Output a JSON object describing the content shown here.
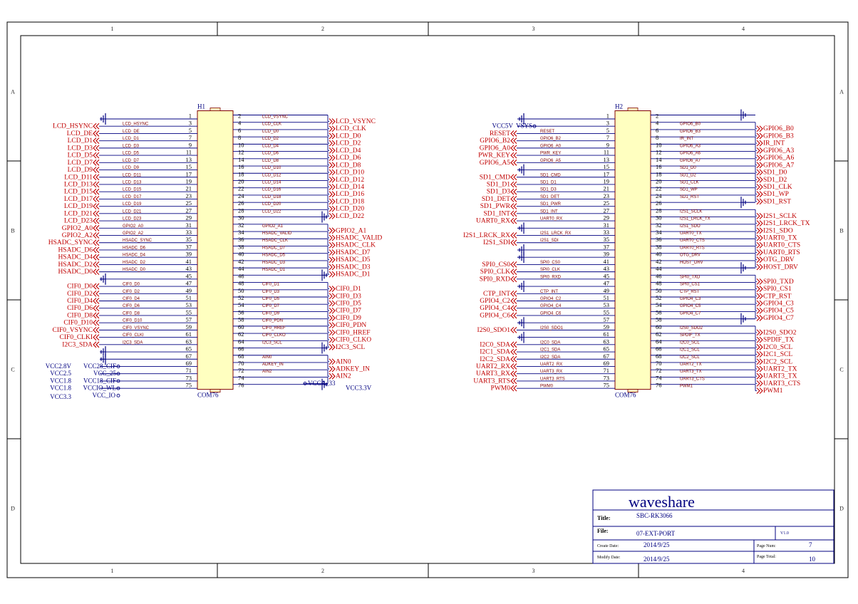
{
  "title_block": {
    "company": "waveshare",
    "title_label": "Title:",
    "title": "SBC-RK3066",
    "file_label": "File:",
    "file": "07-EXT-PORT",
    "version": "V1.0",
    "create_label": "Create Date:",
    "create_date": "2014/9/25",
    "modify_label": "Modify Date:",
    "modify_date": "2014/9/25",
    "page_num_label": "Page Num:",
    "page_num": "7",
    "page_total_label": "Page Total:",
    "page_total": "10"
  },
  "zones": {
    "cols": [
      "1",
      "2",
      "3",
      "4"
    ],
    "rows": [
      "A",
      "B",
      "C",
      "D"
    ]
  },
  "colors": {
    "frame": "#000000",
    "wire": "#000080",
    "net": "#c00000",
    "header_body": "#ffffc0",
    "sig": "#800000"
  },
  "h1": {
    "ref": "H1",
    "part": "COM76",
    "rows": [
      {
        "ln": "1",
        "lsig": "",
        "lnet": "",
        "lt": "gnd",
        "rn": "2",
        "rsig": "LCD_VSYNC",
        "rnet": "LCD_VSYNC",
        "rt": "out"
      },
      {
        "ln": "3",
        "lsig": "LCD_HSYNC",
        "lnet": "LCD_HSYNC",
        "lt": "out",
        "rn": "4",
        "rsig": "LCD_CLK",
        "rnet": "LCD_CLK",
        "rt": "out"
      },
      {
        "ln": "5",
        "lsig": "LCD_DE",
        "lnet": "LCD_DE",
        "lt": "out",
        "rn": "6",
        "rsig": "LCD_D0",
        "rnet": "LCD_D0",
        "rt": "out"
      },
      {
        "ln": "7",
        "lsig": "LCD_D1",
        "lnet": "LCD_D1",
        "lt": "out",
        "rn": "8",
        "rsig": "LCD_D2",
        "rnet": "LCD_D2",
        "rt": "out"
      },
      {
        "ln": "9",
        "lsig": "LCD_D3",
        "lnet": "LCD_D3",
        "lt": "out",
        "rn": "10",
        "rsig": "LCD_D4",
        "rnet": "LCD_D4",
        "rt": "out"
      },
      {
        "ln": "11",
        "lsig": "LCD_D5",
        "lnet": "LCD_D5",
        "lt": "out",
        "rn": "12",
        "rsig": "LCD_D6",
        "rnet": "LCD_D6",
        "rt": "out"
      },
      {
        "ln": "13",
        "lsig": "LCD_D7",
        "lnet": "LCD_D7",
        "lt": "out",
        "rn": "14",
        "rsig": "LCD_D8",
        "rnet": "LCD_D8",
        "rt": "out"
      },
      {
        "ln": "15",
        "lsig": "LCD_D9",
        "lnet": "LCD_D9",
        "lt": "out",
        "rn": "16",
        "rsig": "LCD_D10",
        "rnet": "LCD_D10",
        "rt": "out"
      },
      {
        "ln": "17",
        "lsig": "LCD_D11",
        "lnet": "LCD_D11",
        "lt": "out",
        "rn": "18",
        "rsig": "LCD_D12",
        "rnet": "LCD_D12",
        "rt": "out"
      },
      {
        "ln": "19",
        "lsig": "LCD_D13",
        "lnet": "LCD_D13",
        "lt": "out",
        "rn": "20",
        "rsig": "LCD_D14",
        "rnet": "LCD_D14",
        "rt": "out"
      },
      {
        "ln": "21",
        "lsig": "LCD_D15",
        "lnet": "LCD_D15",
        "lt": "out",
        "rn": "22",
        "rsig": "LCD_D16",
        "rnet": "LCD_D16",
        "rt": "out"
      },
      {
        "ln": "23",
        "lsig": "LCD_D17",
        "lnet": "LCD_D17",
        "lt": "out",
        "rn": "24",
        "rsig": "LCD_D18",
        "rnet": "LCD_D18",
        "rt": "out"
      },
      {
        "ln": "25",
        "lsig": "LCD_D19",
        "lnet": "LCD_D19",
        "lt": "out",
        "rn": "26",
        "rsig": "LCD_D20",
        "rnet": "LCD_D20",
        "rt": "out"
      },
      {
        "ln": "27",
        "lsig": "LCD_D21",
        "lnet": "LCD_D21",
        "lt": "out",
        "rn": "28",
        "rsig": "LCD_D22",
        "rnet": "LCD_D22",
        "rt": "out"
      },
      {
        "ln": "29",
        "lsig": "LCD_D23",
        "lnet": "LCD_D23",
        "lt": "out",
        "rn": "30",
        "rsig": "",
        "rnet": "",
        "rt": "gnd"
      },
      {
        "ln": "31",
        "lsig": "GPIO2_A0",
        "lnet": "GPIO2_A0",
        "lt": "out",
        "rn": "32",
        "rsig": "GPIO2_A1",
        "rnet": "GPIO2_A1",
        "rt": "out"
      },
      {
        "ln": "33",
        "lsig": "GPIO2_A2",
        "lnet": "GPIO2_A2",
        "lt": "out",
        "rn": "34",
        "rsig": "HSADC_VALID",
        "rnet": "HSADC_VALID",
        "rt": "out"
      },
      {
        "ln": "35",
        "lsig": "HSADC_SYNC",
        "lnet": "HSADC_SYNC",
        "lt": "out",
        "rn": "36",
        "rsig": "HSADC_CLK",
        "rnet": "HSADC_CLK",
        "rt": "out"
      },
      {
        "ln": "37",
        "lsig": "HSADC_D6",
        "lnet": "HSADC_D6",
        "lt": "out",
        "rn": "38",
        "rsig": "HSADC_D7",
        "rnet": "HSADC_D7",
        "rt": "out"
      },
      {
        "ln": "39",
        "lsig": "HSADC_D4",
        "lnet": "HSADC_D4",
        "lt": "out",
        "rn": "40",
        "rsig": "HSADC_D5",
        "rnet": "HSADC_D5",
        "rt": "out"
      },
      {
        "ln": "41",
        "lsig": "HSADC_D2",
        "lnet": "HSADC_D2",
        "lt": "out",
        "rn": "42",
        "rsig": "HSADC_D3",
        "rnet": "HSADC_D3",
        "rt": "out"
      },
      {
        "ln": "43",
        "lsig": "HSADC_D0",
        "lnet": "HSADC_D0",
        "lt": "out",
        "rn": "44",
        "rsig": "HSADC_D1",
        "rnet": "HSADC_D1",
        "rt": "out"
      },
      {
        "ln": "45",
        "lsig": "",
        "lnet": "",
        "lt": "gnd",
        "rn": "46",
        "rsig": "",
        "rnet": "",
        "rt": "gnd"
      },
      {
        "ln": "47",
        "lsig": "CIF0_D0",
        "lnet": "CIF0_D0",
        "lt": "out",
        "rn": "48",
        "rsig": "CIF0_D1",
        "rnet": "CIF0_D1",
        "rt": "out"
      },
      {
        "ln": "49",
        "lsig": "CIF0_D2",
        "lnet": "CIF0_D2",
        "lt": "out",
        "rn": "50",
        "rsig": "CIF0_D3",
        "rnet": "CIF0_D3",
        "rt": "out"
      },
      {
        "ln": "51",
        "lsig": "CIF0_D4",
        "lnet": "CIF0_D4",
        "lt": "out",
        "rn": "52",
        "rsig": "CIF0_D5",
        "rnet": "CIF0_D5",
        "rt": "out"
      },
      {
        "ln": "53",
        "lsig": "CIF0_D6",
        "lnet": "CIF0_D6",
        "lt": "out",
        "rn": "54",
        "rsig": "CIF0_D7",
        "rnet": "CIF0_D7",
        "rt": "out"
      },
      {
        "ln": "55",
        "lsig": "CIF0_D8",
        "lnet": "CIF0_D8",
        "lt": "out",
        "rn": "56",
        "rsig": "CIF0_D9",
        "rnet": "CIF0_D9",
        "rt": "out"
      },
      {
        "ln": "57",
        "lsig": "CIF0_D10",
        "lnet": "CIF0_D10",
        "lt": "out",
        "rn": "58",
        "rsig": "CIF0_PDN",
        "rnet": "CIF0_PDN",
        "rt": "out"
      },
      {
        "ln": "59",
        "lsig": "CIF0_VSYNC",
        "lnet": "CIF0_VSYNC",
        "lt": "out",
        "rn": "60",
        "rsig": "CIF0_HREF",
        "rnet": "CIF0_HREF",
        "rt": "out"
      },
      {
        "ln": "61",
        "lsig": "CIF0_CLKI",
        "lnet": "CIF0_CLKI",
        "lt": "out",
        "rn": "62",
        "rsig": "CIF0_CLKO",
        "rnet": "CIF0_CLKO",
        "rt": "out"
      },
      {
        "ln": "63",
        "lsig": "I2C3_SDA",
        "lnet": "I2C3_SDA",
        "lt": "out",
        "rn": "64",
        "rsig": "I2C3_SCL",
        "rnet": "I2C3_SCL",
        "rt": "out"
      },
      {
        "ln": "65",
        "lsig": "",
        "lnet": "",
        "lt": "gnd",
        "rn": "66",
        "rsig": "",
        "rnet": "",
        "rt": "gnd"
      },
      {
        "ln": "67",
        "lsig": "",
        "lnet": "",
        "lt": "gnd",
        "rn": "68",
        "rsig": "AIN0",
        "rnet": "AIN0",
        "rt": "out"
      },
      {
        "ln": "69",
        "lsig": "",
        "lnet": "VCC28_CIF",
        "lt": "pwr",
        "rn": "70",
        "rsig": "ADKEY_IN",
        "rnet": "ADKEY_IN",
        "rt": "out"
      },
      {
        "ln": "71",
        "lsig": "",
        "lnet": "VCC_25",
        "lt": "pwr",
        "rn": "72",
        "rsig": "AIN2",
        "rnet": "AIN2",
        "rt": "out"
      },
      {
        "ln": "73",
        "lsig": "",
        "lnet": "VCC18_CIF",
        "lt": "pwr",
        "rn": "74",
        "rsig": "",
        "rnet": "VCCA_33",
        "rt": "pwr"
      },
      {
        "ln": "75",
        "lsig": "",
        "lnet": "VCCIO_WL",
        "lt": "pwr",
        "rn": "76",
        "rsig": "",
        "rnet": "",
        "rt": "gnd"
      }
    ],
    "extra_pwr": "VCC_IO",
    "voltages": [
      "VCC2.8V",
      "VCC2.5",
      "VCC1.8",
      "VCC1.8",
      "VCC3.3"
    ],
    "right_voltage": "VCC3.3V"
  },
  "h2": {
    "ref": "H2",
    "part": "COM76",
    "vcc_label": "VCC5V",
    "vsys_label": "VSYS",
    "rows": [
      {
        "ln": "1",
        "lsig": "",
        "lnet": "",
        "lt": "gnd",
        "rn": "2",
        "rsig": "",
        "rnet": "",
        "rt": "gnd"
      },
      {
        "ln": "3",
        "lsig": "",
        "lnet": "",
        "lt": "vsys",
        "rn": "4",
        "rsig": "GPIO6_B0",
        "rnet": "GPIO6_B0",
        "rt": "out"
      },
      {
        "ln": "5",
        "lsig": "RESET",
        "lnet": "RESET",
        "lt": "out",
        "rn": "6",
        "rsig": "GPIO6_B3",
        "rnet": "GPIO6_B3",
        "rt": "out"
      },
      {
        "ln": "7",
        "lsig": "GPIO6_B2",
        "lnet": "GPIO6_B2",
        "lt": "out",
        "rn": "8",
        "rsig": "IR_INT",
        "rnet": "IR_INT",
        "rt": "out"
      },
      {
        "ln": "9",
        "lsig": "GPIO6_A0",
        "lnet": "GPIO6_A0",
        "lt": "out",
        "rn": "10",
        "rsig": "GPIO6_A3",
        "rnet": "GPIO6_A3",
        "rt": "out"
      },
      {
        "ln": "11",
        "lsig": "PWR_KEY",
        "lnet": "PWR_KEY",
        "lt": "out",
        "rn": "12",
        "rsig": "GPIO6_A6",
        "rnet": "GPIO6_A6",
        "rt": "out"
      },
      {
        "ln": "13",
        "lsig": "GPIO6_A5",
        "lnet": "GPIO6_A5",
        "lt": "out",
        "rn": "14",
        "rsig": "GPIO6_A7",
        "rnet": "GPIO6_A7",
        "rt": "out"
      },
      {
        "ln": "15",
        "lsig": "",
        "lnet": "",
        "lt": "gnd",
        "rn": "16",
        "rsig": "SD1_D0",
        "rnet": "SD1_D0",
        "rt": "out"
      },
      {
        "ln": "17",
        "lsig": "SD1_CMD",
        "lnet": "SD1_CMD",
        "lt": "out",
        "rn": "18",
        "rsig": "SD1_D2",
        "rnet": "SD1_D2",
        "rt": "out"
      },
      {
        "ln": "19",
        "lsig": "SD1_D1",
        "lnet": "SD1_D1",
        "lt": "out",
        "rn": "20",
        "rsig": "SD1_CLK",
        "rnet": "SD1_CLK",
        "rt": "out"
      },
      {
        "ln": "21",
        "lsig": "SD1_D3",
        "lnet": "SD1_D3",
        "lt": "out",
        "rn": "22",
        "rsig": "SD1_WP",
        "rnet": "SD1_WP",
        "rt": "out"
      },
      {
        "ln": "23",
        "lsig": "SD1_DET",
        "lnet": "SD1_DET",
        "lt": "out",
        "rn": "24",
        "rsig": "SD1_RST",
        "rnet": "SD1_RST",
        "rt": "out"
      },
      {
        "ln": "25",
        "lsig": "SD1_PWR",
        "lnet": "SD1_PWR",
        "lt": "out",
        "rn": "26",
        "rsig": "",
        "rnet": "",
        "rt": "gnd"
      },
      {
        "ln": "27",
        "lsig": "SD1_INT",
        "lnet": "SD1_INT",
        "lt": "out",
        "rn": "28",
        "rsig": "I2S1_SCLK",
        "rnet": "I2S1_SCLK",
        "rt": "out"
      },
      {
        "ln": "29",
        "lsig": "UART0_RX",
        "lnet": "UART0_RX",
        "lt": "out",
        "rn": "30",
        "rsig": "I2S1_LRCK_TX",
        "rnet": "I2S1_LRCK_TX",
        "rt": "out"
      },
      {
        "ln": "31",
        "lsig": "",
        "lnet": "",
        "lt": "gnd",
        "rn": "32",
        "rsig": "I2S1_SDO",
        "rnet": "I2S1_SDO",
        "rt": "out"
      },
      {
        "ln": "33",
        "lsig": "I2S1_LRCK_RX",
        "lnet": "I2S1_LRCK_RX",
        "lt": "out",
        "rn": "34",
        "rsig": "UART0_TX",
        "rnet": "UART0_TX",
        "rt": "out"
      },
      {
        "ln": "35",
        "lsig": "I2S1_SDI",
        "lnet": "I2S1_SDI",
        "lt": "out",
        "rn": "36",
        "rsig": "UART0_CTS",
        "rnet": "UART0_CTS",
        "rt": "out"
      },
      {
        "ln": "37",
        "lsig": "",
        "lnet": "",
        "lt": "gnd",
        "rn": "38",
        "rsig": "UART0_RTS",
        "rnet": "UART0_RTS",
        "rt": "out"
      },
      {
        "ln": "39",
        "lsig": "",
        "lnet": "",
        "lt": "gnd",
        "rn": "40",
        "rsig": "OTG_DRV",
        "rnet": "OTG_DRV",
        "rt": "out"
      },
      {
        "ln": "41",
        "lsig": "SPI0_CS0",
        "lnet": "SPI0_CS0",
        "lt": "out",
        "rn": "42",
        "rsig": "HOST_DRV",
        "rnet": "HOST_DRV",
        "rt": "out"
      },
      {
        "ln": "43",
        "lsig": "SPI0_CLK",
        "lnet": "SPI0_CLK",
        "lt": "out",
        "rn": "44",
        "rsig": "",
        "rnet": "",
        "rt": "gnd"
      },
      {
        "ln": "45",
        "lsig": "SPI0_RXD",
        "lnet": "SPI0_RXD",
        "lt": "out",
        "rn": "46",
        "rsig": "SPI0_TXD",
        "rnet": "SPI0_TXD",
        "rt": "out"
      },
      {
        "ln": "47",
        "lsig": "",
        "lnet": "",
        "lt": "gnd",
        "rn": "48",
        "rsig": "SPI0_CS1",
        "rnet": "SPI0_CS1",
        "rt": "out"
      },
      {
        "ln": "49",
        "lsig": "CTP_INT",
        "lnet": "CTP_INT",
        "lt": "out",
        "rn": "50",
        "rsig": "CTP_RST",
        "rnet": "CTP_RST",
        "rt": "out"
      },
      {
        "ln": "51",
        "lsig": "GPIO4_C2",
        "lnet": "GPIO4_C2",
        "lt": "out",
        "rn": "52",
        "rsig": "GPIO4_C3",
        "rnet": "GPIO4_C3",
        "rt": "out"
      },
      {
        "ln": "53",
        "lsig": "GPIO4_C4",
        "lnet": "GPIO4_C4",
        "lt": "out",
        "rn": "54",
        "rsig": "GPIO4_C5",
        "rnet": "GPIO4_C5",
        "rt": "out"
      },
      {
        "ln": "55",
        "lsig": "GPIO4_C6",
        "lnet": "GPIO4_C6",
        "lt": "out",
        "rn": "56",
        "rsig": "GPIO4_C7",
        "rnet": "GPIO4_C7",
        "rt": "out"
      },
      {
        "ln": "57",
        "lsig": "",
        "lnet": "",
        "lt": "gnd",
        "rn": "58",
        "rsig": "",
        "rnet": "",
        "rt": "gnd"
      },
      {
        "ln": "59",
        "lsig": "I2S0_SDO1",
        "lnet": "I2S0_SDO1",
        "lt": "out",
        "rn": "60",
        "rsig": "I2S0_SDO2",
        "rnet": "I2S0_SDO2",
        "rt": "out"
      },
      {
        "ln": "61",
        "lsig": "",
        "lnet": "",
        "lt": "gnd",
        "rn": "62",
        "rsig": "SPDIF_TX",
        "rnet": "SPDIF_TX",
        "rt": "out"
      },
      {
        "ln": "63",
        "lsig": "I2C0_SDA",
        "lnet": "I2C0_SDA",
        "lt": "out",
        "rn": "64",
        "rsig": "I2C0_SCL",
        "rnet": "I2C0_SCL",
        "rt": "out"
      },
      {
        "ln": "65",
        "lsig": "I2C1_SDA",
        "lnet": "I2C1_SDA",
        "lt": "out",
        "rn": "66",
        "rsig": "I2C1_SCL",
        "rnet": "I2C1_SCL",
        "rt": "out"
      },
      {
        "ln": "67",
        "lsig": "I2C2_SDA",
        "lnet": "I2C2_SDA",
        "lt": "out",
        "rn": "68",
        "rsig": "I2C2_SCL",
        "rnet": "I2C2_SCL",
        "rt": "out"
      },
      {
        "ln": "69",
        "lsig": "UART2_RX",
        "lnet": "UART2_RX",
        "lt": "out",
        "rn": "70",
        "rsig": "UART2_TX",
        "rnet": "UART2_TX",
        "rt": "out"
      },
      {
        "ln": "71",
        "lsig": "UART3_RX",
        "lnet": "UART3_RX",
        "lt": "out",
        "rn": "72",
        "rsig": "UART3_TX",
        "rnet": "UART3_TX",
        "rt": "out"
      },
      {
        "ln": "73",
        "lsig": "UART3_RTS",
        "lnet": "UART3_RTS",
        "lt": "out",
        "rn": "74",
        "rsig": "UART3_CTS",
        "rnet": "UART3_CTS",
        "rt": "out"
      },
      {
        "ln": "75",
        "lsig": "PWM0",
        "lnet": "PWM0",
        "lt": "out",
        "rn": "76",
        "rsig": "PWM1",
        "rnet": "PWM1",
        "rt": "out"
      }
    ]
  }
}
